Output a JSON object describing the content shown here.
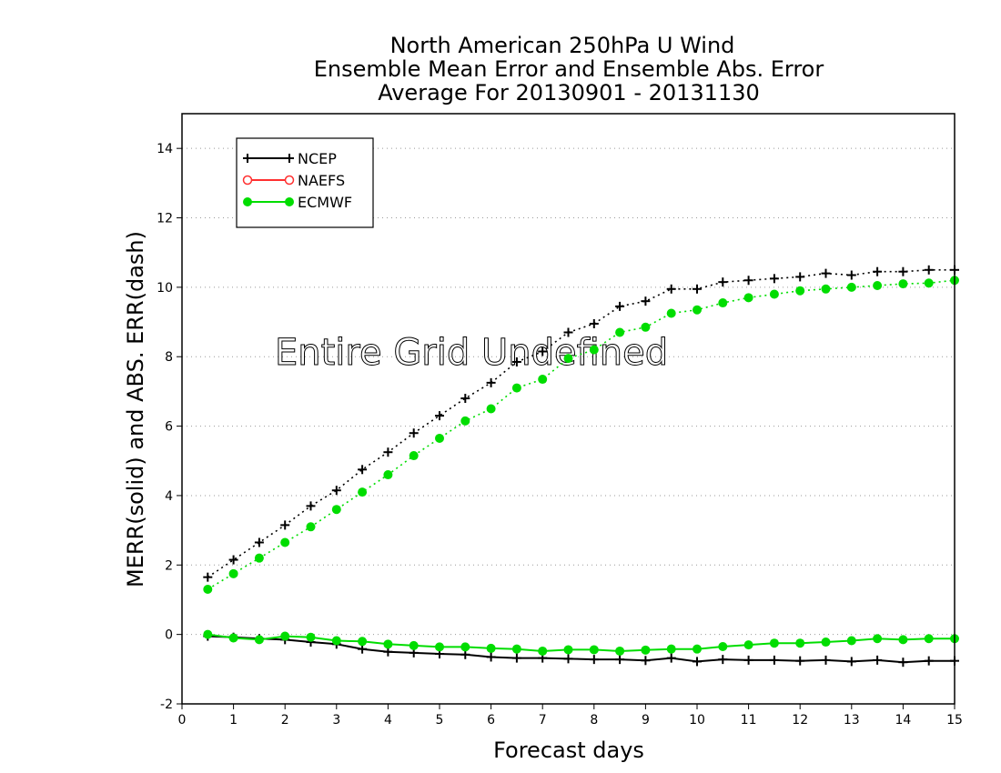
{
  "chart_data": {
    "type": "line",
    "title_lines": [
      "North American 250hPa U Wind",
      "Ensemble Mean Error and Ensemble Abs. Error",
      "Average For 20130901 - 20131130"
    ],
    "xlabel": "Forecast days",
    "ylabel": "MERR(solid) and ABS. ERR(dash)",
    "annotation": "Entire Grid Undefined",
    "xlim": [
      0,
      15
    ],
    "ylim": [
      -2,
      15
    ],
    "x_ticks": [
      "0",
      "1",
      "2",
      "3",
      "4",
      "5",
      "6",
      "7",
      "8",
      "9",
      "10",
      "11",
      "12",
      "13",
      "14",
      "15"
    ],
    "y_ticks": [
      "-2",
      "0",
      "2",
      "4",
      "6",
      "8",
      "10",
      "12",
      "14"
    ],
    "y_tick_values": [
      -2,
      0,
      2,
      4,
      6,
      8,
      10,
      12,
      14
    ],
    "grid": "horizontal dotted",
    "legend_position": "top-left",
    "legend": [
      {
        "name": "NCEP",
        "color": "#000000",
        "marker": "plus"
      },
      {
        "name": "NAEFS",
        "color": "#ff3030",
        "marker": "open-circle"
      },
      {
        "name": "ECMWF",
        "color": "#00dd00",
        "marker": "filled-circle"
      }
    ],
    "x": [
      0.5,
      1,
      1.5,
      2,
      2.5,
      3,
      3.5,
      4,
      4.5,
      5,
      5.5,
      6,
      6.5,
      7,
      7.5,
      8,
      8.5,
      9,
      9.5,
      10,
      10.5,
      11,
      11.5,
      12,
      12.5,
      13,
      13.5,
      14,
      14.5,
      15
    ],
    "series": [
      {
        "name": "NCEP",
        "kind": "abs_error",
        "style": "dash",
        "color": "#000000",
        "marker": "plus",
        "values": [
          1.65,
          2.15,
          2.65,
          3.15,
          3.7,
          4.15,
          4.75,
          5.25,
          5.8,
          6.3,
          6.8,
          7.25,
          7.85,
          8.15,
          8.7,
          8.95,
          9.45,
          9.6,
          9.95,
          9.95,
          10.15,
          10.2,
          10.25,
          10.3,
          10.4,
          10.35,
          10.45,
          10.45,
          10.5,
          10.5
        ]
      },
      {
        "name": "ECMWF",
        "kind": "abs_error",
        "style": "dash",
        "color": "#00dd00",
        "marker": "filled-circle",
        "values": [
          1.3,
          1.75,
          2.2,
          2.65,
          3.1,
          3.6,
          4.1,
          4.6,
          5.15,
          5.65,
          6.15,
          6.5,
          7.1,
          7.35,
          7.95,
          8.2,
          8.7,
          8.85,
          9.25,
          9.35,
          9.55,
          9.7,
          9.8,
          9.9,
          9.95,
          10.0,
          10.05,
          10.1,
          10.12,
          10.2
        ]
      },
      {
        "name": "NCEP",
        "kind": "mean_error",
        "style": "solid",
        "color": "#000000",
        "marker": "plus",
        "values": [
          -0.05,
          -0.08,
          -0.12,
          -0.15,
          -0.22,
          -0.28,
          -0.42,
          -0.5,
          -0.53,
          -0.56,
          -0.58,
          -0.65,
          -0.68,
          -0.68,
          -0.7,
          -0.72,
          -0.72,
          -0.75,
          -0.68,
          -0.78,
          -0.72,
          -0.74,
          -0.74,
          -0.76,
          -0.74,
          -0.78,
          -0.74,
          -0.8,
          -0.76,
          -0.76
        ]
      },
      {
        "name": "ECMWF",
        "kind": "mean_error",
        "style": "solid",
        "color": "#00dd00",
        "marker": "filled-circle",
        "values": [
          0.0,
          -0.1,
          -0.15,
          -0.05,
          -0.08,
          -0.18,
          -0.2,
          -0.28,
          -0.32,
          -0.36,
          -0.36,
          -0.4,
          -0.42,
          -0.48,
          -0.44,
          -0.44,
          -0.48,
          -0.45,
          -0.42,
          -0.42,
          -0.35,
          -0.3,
          -0.25,
          -0.25,
          -0.22,
          -0.18,
          -0.12,
          -0.15,
          -0.12,
          -0.12
        ]
      }
    ]
  }
}
